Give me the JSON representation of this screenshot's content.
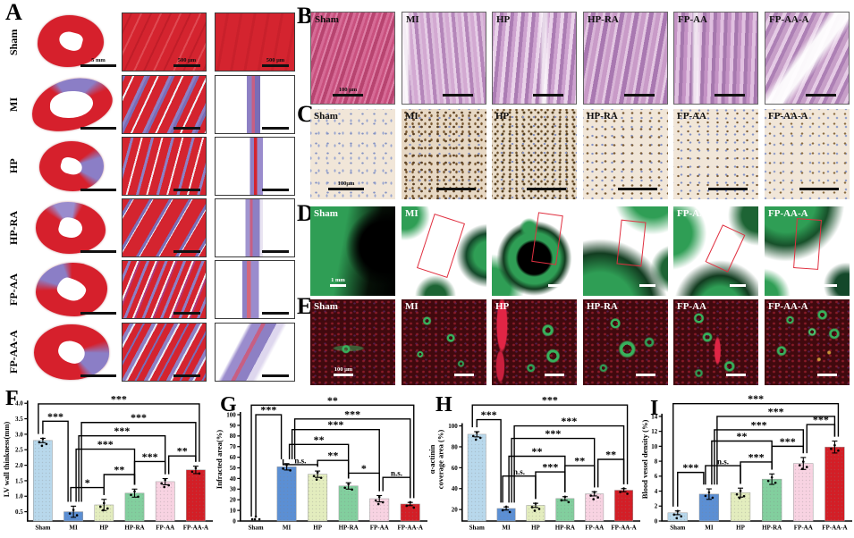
{
  "figure": {
    "groups": [
      "Sham",
      "MI",
      "HP",
      "HP-RA",
      "FP-AA",
      "FP-AA-A"
    ],
    "panels": {
      "A": {
        "label": "A",
        "rows": [
          {
            "group": "Sham",
            "heart_scale": "5 mm",
            "mid_scale": "500 μm",
            "right_scale": "500 μm"
          },
          {
            "group": "MI"
          },
          {
            "group": "HP"
          },
          {
            "group": "HP-RA"
          },
          {
            "group": "FP-AA"
          },
          {
            "group": "FP-AA-A"
          }
        ]
      },
      "B": {
        "label": "B",
        "scale_text": "100 μm"
      },
      "C": {
        "label": "C",
        "scale_text": "100μm"
      },
      "D": {
        "label": "D",
        "scale_text": "1 mm"
      },
      "E": {
        "label": "E",
        "scale_text": "100 μm"
      }
    }
  },
  "chart_data": [
    {
      "id": "F",
      "panel_label": "F",
      "type": "bar",
      "ylabel": [
        "LV wall thinkness(mm)"
      ],
      "categories": [
        "Sham",
        "MI",
        "HP",
        "HP-RA",
        "FP-AA",
        "FP-AA-A"
      ],
      "values": [
        2.8,
        0.5,
        0.72,
        1.1,
        1.47,
        1.85
      ],
      "errors": [
        0.07,
        0.18,
        0.18,
        0.13,
        0.1,
        0.12
      ],
      "ylim": [
        0.2,
        4.18
      ],
      "yticks": [
        0.5,
        1.0,
        1.5,
        2.0,
        2.5,
        3.0,
        3.5,
        4.0
      ],
      "ytick_labels": [
        "0.5",
        "1.0",
        "1.5",
        "2.0",
        "2.5",
        "3.0",
        "3.5",
        "4.0"
      ],
      "bar_colors": [
        "#b8d8ec",
        "#5b8fd4",
        "#e3edbe",
        "#82cf9e",
        "#f8d3e2",
        "#d31e26"
      ],
      "significance": [
        {
          "from": 0,
          "to": 1,
          "label": "***",
          "h": 3.42,
          "o2": -6
        },
        {
          "from": 1,
          "to": 2,
          "label": "*",
          "h": 1.28,
          "o1": -3
        },
        {
          "from": 2,
          "to": 3,
          "label": "**",
          "h": 1.7
        },
        {
          "from": 3,
          "to": 4,
          "label": "***",
          "h": 2.12
        },
        {
          "from": 4,
          "to": 5,
          "label": "**",
          "h": 2.3,
          "o1": 4
        },
        {
          "from": 1,
          "to": 3,
          "label": "***",
          "h": 2.52,
          "o1": 3
        },
        {
          "from": 1,
          "to": 4,
          "label": "***",
          "h": 2.95,
          "o1": 6
        },
        {
          "from": 1,
          "to": 5,
          "label": "***",
          "h": 3.38,
          "o1": 9
        },
        {
          "from": 0,
          "to": 5,
          "label": "***",
          "h": 3.98,
          "o1": -5,
          "o2": 4
        }
      ]
    },
    {
      "id": "G",
      "panel_label": "G",
      "type": "bar",
      "ylabel": [
        "Infracted area(%)"
      ],
      "categories": [
        "Sham",
        "MI",
        "HP",
        "HP-RA",
        "FP-AA",
        "FP-AA-A"
      ],
      "values": [
        0,
        51,
        44,
        33,
        21,
        16
      ],
      "errors": [
        0,
        3,
        3,
        3,
        3,
        1.5
      ],
      "ylim": [
        0,
        116
      ],
      "yticks": [
        0,
        10,
        20,
        30,
        40,
        50,
        60,
        70,
        80,
        90,
        100
      ],
      "ytick_labels": [
        "0",
        "10",
        "20",
        "30",
        "40",
        "50",
        "60",
        "70",
        "80",
        "90",
        "100"
      ],
      "bar_colors": [
        "#b8d8ec",
        "#5b8fd4",
        "#e3edbe",
        "#82cf9e",
        "#f8d3e2",
        "#d31e26"
      ],
      "significance": [
        {
          "from": 0,
          "to": 1,
          "label": "***",
          "h": 100,
          "o2": -6
        },
        {
          "from": 1,
          "to": 2,
          "label": "n.s.",
          "h": 53,
          "o1": -4
        },
        {
          "from": 2,
          "to": 3,
          "label": "**",
          "h": 57
        },
        {
          "from": 3,
          "to": 4,
          "label": "*",
          "h": 45
        },
        {
          "from": 4,
          "to": 5,
          "label": "n.s.",
          "h": 41,
          "o1": 4
        },
        {
          "from": 1,
          "to": 3,
          "label": "**",
          "h": 72,
          "o1": 3
        },
        {
          "from": 1,
          "to": 4,
          "label": "***",
          "h": 86,
          "o1": 6
        },
        {
          "from": 1,
          "to": 5,
          "label": "***",
          "h": 96,
          "o1": 9
        },
        {
          "from": 0,
          "to": 5,
          "label": "**",
          "h": 109,
          "o1": -5,
          "o2": 4
        }
      ]
    },
    {
      "id": "H",
      "panel_label": "H",
      "type": "bar",
      "ylabel": [
        "α-actinin",
        "coverage area (%)"
      ],
      "categories": [
        "Sham",
        "MI",
        "HP",
        "HP-RA",
        "FP-AA",
        "FP-AA-A"
      ],
      "values": [
        92,
        21,
        24,
        30.5,
        35,
        38.5
      ],
      "errors": [
        2.5,
        1.5,
        2,
        1.8,
        2,
        1.5
      ],
      "ylim": [
        9,
        127
      ],
      "yticks": [
        20,
        40,
        60,
        80,
        100
      ],
      "ytick_labels": [
        "20",
        "40",
        "60",
        "80",
        "100"
      ],
      "bar_colors": [
        "#b8d8ec",
        "#5b8fd4",
        "#e3edbe",
        "#82cf9e",
        "#f8d3e2",
        "#d31e26"
      ],
      "significance": [
        {
          "from": 0,
          "to": 1,
          "label": "***",
          "h": 106,
          "o2": -6
        },
        {
          "from": 1,
          "to": 2,
          "label": "n.s.",
          "h": 52,
          "o1": -4
        },
        {
          "from": 2,
          "to": 3,
          "label": "***",
          "h": 56
        },
        {
          "from": 3,
          "to": 4,
          "label": "**",
          "h": 62
        },
        {
          "from": 4,
          "to": 5,
          "label": "**",
          "h": 68,
          "o1": 4
        },
        {
          "from": 1,
          "to": 3,
          "label": "**",
          "h": 71,
          "o1": 3
        },
        {
          "from": 1,
          "to": 4,
          "label": "***",
          "h": 88,
          "o1": 6
        },
        {
          "from": 1,
          "to": 5,
          "label": "***",
          "h": 100,
          "o1": 9
        },
        {
          "from": 0,
          "to": 5,
          "label": "***",
          "h": 120,
          "o1": -5,
          "o2": 4
        }
      ]
    },
    {
      "id": "I",
      "panel_label": "I",
      "type": "bar",
      "ylabel": [
        "Blood vessel density (%)"
      ],
      "categories": [
        "Sham",
        "MI",
        "HP",
        "HP-RA",
        "FP-AA",
        "FP-AA-A"
      ],
      "values": [
        1.1,
        3.6,
        3.8,
        5.6,
        7.7,
        9.9
      ],
      "errors": [
        0.25,
        0.7,
        0.6,
        0.7,
        0.8,
        0.8
      ],
      "ylim": [
        0,
        16.5
      ],
      "yticks": [
        0,
        2,
        4,
        6,
        8,
        10,
        12,
        14
      ],
      "ytick_labels": [
        "0",
        "2",
        "4",
        "6",
        "8",
        "10",
        "12",
        "14"
      ],
      "bar_colors": [
        "#b8d8ec",
        "#5b8fd4",
        "#e3edbe",
        "#82cf9e",
        "#f8d3e2",
        "#d31e26"
      ],
      "significance": [
        {
          "from": 0,
          "to": 1,
          "label": "***",
          "h": 6.5,
          "o2": -6
        },
        {
          "from": 1,
          "to": 2,
          "label": "n.s.",
          "h": 7.4,
          "o1": -4
        },
        {
          "from": 2,
          "to": 3,
          "label": "***",
          "h": 7.9
        },
        {
          "from": 3,
          "to": 4,
          "label": "***",
          "h": 10.0
        },
        {
          "from": 4,
          "to": 5,
          "label": "***",
          "h": 12.9,
          "o1": 4
        },
        {
          "from": 1,
          "to": 3,
          "label": "**",
          "h": 10.7,
          "o1": 3
        },
        {
          "from": 1,
          "to": 4,
          "label": "***",
          "h": 12.2,
          "o1": 6
        },
        {
          "from": 1,
          "to": 5,
          "label": "***",
          "h": 14.0,
          "o1": 9
        },
        {
          "from": 0,
          "to": 5,
          "label": "***",
          "h": 15.7,
          "o1": -5,
          "o2": 4
        }
      ]
    }
  ]
}
